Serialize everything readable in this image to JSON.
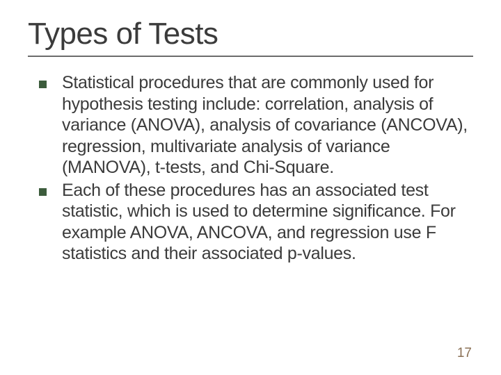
{
  "slide": {
    "title": "Types of Tests",
    "bullets": [
      "Statistical procedures that are commonly used for hypothesis testing include: correlation, analysis of variance (ANOVA), analysis of covariance (ANCOVA), regression, multivariate analysis of variance (MANOVA), t-tests, and Chi-Square.",
      "Each of these procedures has an associated test statistic, which is used to determine significance. For example ANOVA, ANCOVA, and regression use F statistics and their associated p-values."
    ],
    "page_number": "17"
  },
  "style": {
    "background_color": "#ffffff",
    "title_color": "#3b3b3b",
    "title_fontsize": 44,
    "underline_color": "#6b6b6b",
    "body_color": "#3b3b3b",
    "body_fontsize": 25,
    "bullet_marker_color": "#3c5c3c",
    "bullet_marker_size": 11,
    "page_number_color": "#8a7055",
    "page_number_fontsize": 19,
    "font_family": "Verdana"
  }
}
